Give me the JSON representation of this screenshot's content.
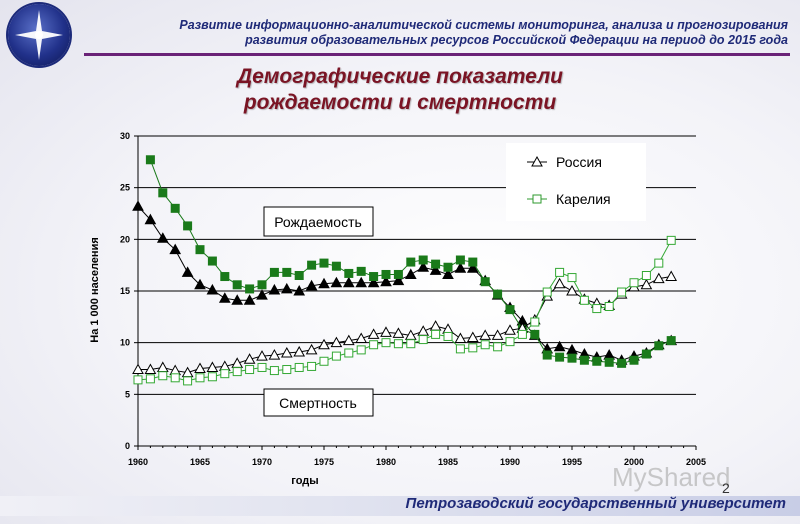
{
  "header": {
    "line1": "Развитие информационно-аналитической системы мониторинга, анализа и прогнозирования",
    "line2": "развития образовательных ресурсов Российской Федерации на период до 2015 года",
    "title_line1": "Демографические показатели",
    "title_line2": "рождаемости и смертности"
  },
  "footer": {
    "university": "Петрозаводский государственный университет",
    "page_number": "2",
    "watermark": "MyShared"
  },
  "colors": {
    "russia": "#000000",
    "karelia_birth": "#1a7a1a",
    "karelia_death": "#34a834",
    "title": "#7a1424",
    "header": "#1f2a78"
  },
  "chart_data": {
    "type": "line",
    "xlabel": "годы",
    "ylabel": "На 1 000 населения",
    "xlim": [
      1960,
      2005
    ],
    "ylim": [
      0,
      30
    ],
    "xticks": [
      "1960",
      "1965",
      "1970",
      "1975",
      "1980",
      "1985",
      "1990",
      "1995",
      "2000",
      "2005"
    ],
    "yticks": [
      "0",
      "5",
      "10",
      "15",
      "20",
      "25",
      "30"
    ],
    "legend": {
      "russia": "Россия",
      "karelia": "Карелия",
      "position": "top-right"
    },
    "annotations": {
      "birth": "Рождаемость",
      "death": "Смертность"
    },
    "series": [
      {
        "name": "Россия — рождаемость",
        "marker": "triangle",
        "filled": true,
        "x": [
          1960,
          1961,
          1962,
          1963,
          1964,
          1965,
          1966,
          1967,
          1968,
          1969,
          1970,
          1971,
          1972,
          1973,
          1974,
          1975,
          1976,
          1977,
          1978,
          1979,
          1980,
          1981,
          1982,
          1983,
          1984,
          1985,
          1986,
          1987,
          1988,
          1989,
          1990,
          1991,
          1992,
          1993,
          1994,
          1995,
          1996,
          1997,
          1998,
          1999,
          2000,
          2001,
          2002,
          2003
        ],
        "values": [
          23.2,
          21.9,
          20.1,
          19.0,
          16.8,
          15.6,
          15.1,
          14.3,
          14.1,
          14.1,
          14.6,
          15.1,
          15.2,
          15.0,
          15.5,
          15.7,
          15.8,
          15.8,
          15.8,
          15.8,
          15.9,
          16.0,
          16.6,
          17.3,
          17.0,
          16.6,
          17.2,
          17.2,
          16.0,
          14.6,
          13.4,
          12.1,
          10.7,
          9.4,
          9.6,
          9.3,
          8.9,
          8.6,
          8.8,
          8.3,
          8.7,
          9.0,
          9.8,
          10.2
        ]
      },
      {
        "name": "Карелия — рождаемость",
        "marker": "square",
        "filled": true,
        "x": [
          1961,
          1962,
          1963,
          1964,
          1965,
          1966,
          1967,
          1968,
          1969,
          1970,
          1971,
          1972,
          1973,
          1974,
          1975,
          1976,
          1977,
          1978,
          1979,
          1980,
          1981,
          1982,
          1983,
          1984,
          1985,
          1986,
          1987,
          1988,
          1989,
          1990,
          1991,
          1992,
          1993,
          1994,
          1995,
          1996,
          1997,
          1998,
          1999,
          2000,
          2001,
          2002,
          2003
        ],
        "values": [
          27.7,
          24.5,
          23.0,
          21.3,
          19.0,
          17.9,
          16.4,
          15.6,
          15.2,
          15.6,
          16.8,
          16.8,
          16.5,
          17.5,
          17.7,
          17.4,
          16.7,
          16.9,
          16.4,
          16.6,
          16.6,
          17.8,
          18.0,
          17.6,
          17.3,
          18.0,
          17.8,
          15.9,
          14.7,
          13.2,
          11.3,
          10.8,
          8.8,
          8.6,
          8.5,
          8.3,
          8.2,
          8.1,
          8.0,
          8.3,
          8.9,
          9.7,
          10.2
        ]
      },
      {
        "name": "Россия — смертность",
        "marker": "triangle",
        "filled": false,
        "x": [
          1960,
          1961,
          1962,
          1963,
          1964,
          1965,
          1966,
          1967,
          1968,
          1969,
          1970,
          1971,
          1972,
          1973,
          1974,
          1975,
          1976,
          1977,
          1978,
          1979,
          1980,
          1981,
          1982,
          1983,
          1984,
          1985,
          1986,
          1987,
          1988,
          1989,
          1990,
          1991,
          1992,
          1993,
          1994,
          1995,
          1996,
          1997,
          1998,
          1999,
          2000,
          2001,
          2002,
          2003
        ],
        "values": [
          7.4,
          7.4,
          7.6,
          7.3,
          7.1,
          7.5,
          7.6,
          7.7,
          8.0,
          8.4,
          8.7,
          8.8,
          9.0,
          9.1,
          9.3,
          9.8,
          10.0,
          10.2,
          10.4,
          10.8,
          11.0,
          10.9,
          10.7,
          11.1,
          11.6,
          11.3,
          10.4,
          10.5,
          10.7,
          10.7,
          11.2,
          11.4,
          12.2,
          14.5,
          15.7,
          15.0,
          14.2,
          13.8,
          13.6,
          14.7,
          15.4,
          15.6,
          16.2,
          16.4
        ]
      },
      {
        "name": "Карелия — смертность",
        "marker": "square",
        "filled": false,
        "x": [
          1960,
          1961,
          1962,
          1963,
          1964,
          1965,
          1966,
          1967,
          1968,
          1969,
          1970,
          1971,
          1972,
          1973,
          1974,
          1975,
          1976,
          1977,
          1978,
          1979,
          1980,
          1981,
          1982,
          1983,
          1984,
          1985,
          1986,
          1987,
          1988,
          1989,
          1990,
          1991,
          1992,
          1993,
          1994,
          1995,
          1996,
          1997,
          1998,
          1999,
          2000,
          2001,
          2002,
          2003
        ],
        "values": [
          6.4,
          6.5,
          6.8,
          6.6,
          6.3,
          6.6,
          6.7,
          7.0,
          7.2,
          7.4,
          7.6,
          7.3,
          7.4,
          7.6,
          7.7,
          8.2,
          8.7,
          9.0,
          9.3,
          9.8,
          10.0,
          9.9,
          9.9,
          10.3,
          10.8,
          10.6,
          9.4,
          9.5,
          9.8,
          9.6,
          10.1,
          10.8,
          12.0,
          14.9,
          16.8,
          16.3,
          14.1,
          13.3,
          13.5,
          14.9,
          15.8,
          16.5,
          17.7,
          19.9
        ]
      }
    ]
  }
}
